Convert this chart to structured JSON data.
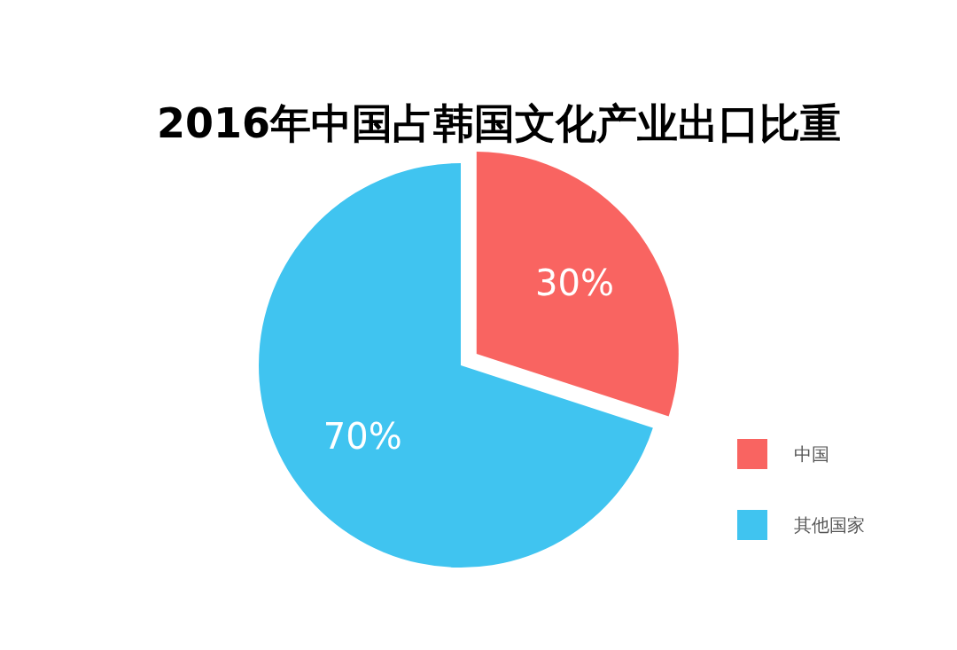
{
  "chart_data": {
    "type": "pie",
    "title": "2016年中国占韩国文化产业出口比重",
    "categories": [
      "中国",
      "其他国家"
    ],
    "values": [
      30,
      70
    ],
    "value_labels": [
      "30%",
      "70%"
    ],
    "colors": [
      "#f96461",
      "#40c4f0"
    ],
    "legend": "bottom right"
  }
}
